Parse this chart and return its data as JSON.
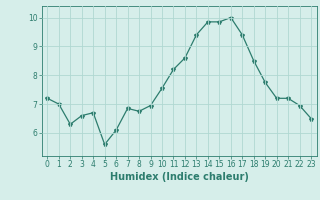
{
  "x": [
    0,
    1,
    2,
    3,
    4,
    5,
    6,
    7,
    8,
    9,
    10,
    11,
    12,
    13,
    14,
    15,
    16,
    17,
    18,
    19,
    20,
    21,
    22,
    23
  ],
  "y": [
    7.2,
    7.0,
    6.3,
    6.6,
    6.7,
    5.6,
    6.1,
    6.85,
    6.75,
    6.95,
    7.55,
    8.2,
    8.6,
    9.4,
    9.85,
    9.85,
    10.0,
    9.4,
    8.5,
    7.75,
    7.2,
    7.2,
    6.95,
    6.5
  ],
  "line_color": "#2d7d6e",
  "marker": "*",
  "marker_size": 3,
  "bg_color": "#d6eeea",
  "grid_color": "#b0d8d2",
  "xlabel": "Humidex (Indice chaleur)",
  "ylim": [
    5.2,
    10.4
  ],
  "xlim": [
    -0.5,
    23.5
  ],
  "yticks": [
    6,
    7,
    8,
    9,
    10
  ],
  "xticks": [
    0,
    1,
    2,
    3,
    4,
    5,
    6,
    7,
    8,
    9,
    10,
    11,
    12,
    13,
    14,
    15,
    16,
    17,
    18,
    19,
    20,
    21,
    22,
    23
  ],
  "tick_color": "#2d7d6e",
  "label_color": "#2d7d6e",
  "label_fontsize": 7,
  "tick_fontsize": 5.5
}
